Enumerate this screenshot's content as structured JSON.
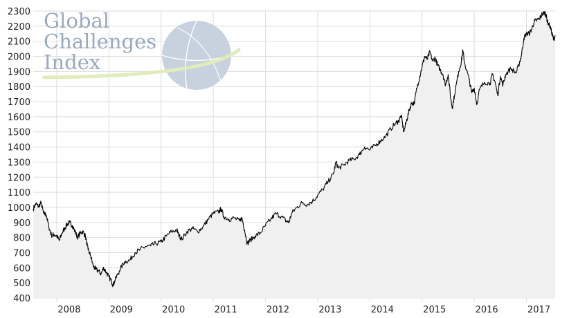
{
  "chart_data": {
    "type": "area",
    "title": "",
    "xlabel": "",
    "ylabel": "",
    "ylim": [
      400,
      2300
    ],
    "yticks": [
      400,
      500,
      600,
      700,
      800,
      900,
      1000,
      1100,
      1200,
      1300,
      1400,
      1500,
      1600,
      1700,
      1800,
      1900,
      2000,
      2100,
      2200,
      2300
    ],
    "xlim": [
      2007.55,
      2017.55
    ],
    "xticks": [
      {
        "value": 2008.0,
        "label": "2008"
      },
      {
        "value": 2009.0,
        "label": "2009"
      },
      {
        "value": 2010.0,
        "label": "2010"
      },
      {
        "value": 2011.0,
        "label": "2011"
      },
      {
        "value": 2012.0,
        "label": "2012"
      },
      {
        "value": 2013.0,
        "label": "2013"
      },
      {
        "value": 2014.0,
        "label": "2014"
      },
      {
        "value": 2015.0,
        "label": "2015"
      },
      {
        "value": 2016.0,
        "label": "2016"
      },
      {
        "value": 2017.0,
        "label": "2017"
      }
    ],
    "grid": true,
    "line_color": "#000000",
    "fill_color": "#f0f0f0",
    "grid_color": "#dddddd",
    "series": [
      {
        "name": "",
        "points": [
          [
            2007.55,
            990
          ],
          [
            2007.6,
            1025
          ],
          [
            2007.65,
            1005
          ],
          [
            2007.7,
            1030
          ],
          [
            2007.75,
            960
          ],
          [
            2007.8,
            950
          ],
          [
            2007.85,
            870
          ],
          [
            2007.9,
            815
          ],
          [
            2007.95,
            820
          ],
          [
            2008.0,
            810
          ],
          [
            2008.05,
            780
          ],
          [
            2008.1,
            830
          ],
          [
            2008.15,
            860
          ],
          [
            2008.2,
            890
          ],
          [
            2008.25,
            900
          ],
          [
            2008.3,
            880
          ],
          [
            2008.35,
            840
          ],
          [
            2008.4,
            800
          ],
          [
            2008.45,
            830
          ],
          [
            2008.5,
            840
          ],
          [
            2008.55,
            810
          ],
          [
            2008.6,
            720
          ],
          [
            2008.65,
            680
          ],
          [
            2008.7,
            610
          ],
          [
            2008.75,
            590
          ],
          [
            2008.8,
            580
          ],
          [
            2008.85,
            560
          ],
          [
            2008.9,
            600
          ],
          [
            2008.95,
            570
          ],
          [
            2009.0,
            540
          ],
          [
            2009.05,
            510
          ],
          [
            2009.08,
            485
          ],
          [
            2009.12,
            520
          ],
          [
            2009.2,
            580
          ],
          [
            2009.3,
            640
          ],
          [
            2009.4,
            650
          ],
          [
            2009.5,
            700
          ],
          [
            2009.6,
            720
          ],
          [
            2009.7,
            740
          ],
          [
            2009.8,
            745
          ],
          [
            2009.9,
            760
          ],
          [
            2010.0,
            770
          ],
          [
            2010.1,
            810
          ],
          [
            2010.2,
            840
          ],
          [
            2010.3,
            850
          ],
          [
            2010.35,
            810
          ],
          [
            2010.4,
            790
          ],
          [
            2010.5,
            840
          ],
          [
            2010.6,
            860
          ],
          [
            2010.7,
            840
          ],
          [
            2010.8,
            870
          ],
          [
            2010.9,
            920
          ],
          [
            2011.0,
            960
          ],
          [
            2011.1,
            970
          ],
          [
            2011.15,
            990
          ],
          [
            2011.2,
            940
          ],
          [
            2011.3,
            920
          ],
          [
            2011.4,
            930
          ],
          [
            2011.5,
            910
          ],
          [
            2011.55,
            930
          ],
          [
            2011.6,
            850
          ],
          [
            2011.65,
            760
          ],
          [
            2011.7,
            780
          ],
          [
            2011.8,
            810
          ],
          [
            2011.9,
            830
          ],
          [
            2012.0,
            880
          ],
          [
            2012.1,
            920
          ],
          [
            2012.2,
            960
          ],
          [
            2012.3,
            940
          ],
          [
            2012.4,
            910
          ],
          [
            2012.45,
            900
          ],
          [
            2012.5,
            960
          ],
          [
            2012.6,
            1000
          ],
          [
            2012.7,
            1030
          ],
          [
            2012.8,
            1020
          ],
          [
            2012.9,
            1040
          ],
          [
            2013.0,
            1080
          ],
          [
            2013.1,
            1120
          ],
          [
            2013.2,
            1170
          ],
          [
            2013.3,
            1220
          ],
          [
            2013.35,
            1300
          ],
          [
            2013.4,
            1260
          ],
          [
            2013.5,
            1280
          ],
          [
            2013.6,
            1310
          ],
          [
            2013.7,
            1320
          ],
          [
            2013.8,
            1350
          ],
          [
            2013.9,
            1400
          ],
          [
            2014.0,
            1380
          ],
          [
            2014.1,
            1410
          ],
          [
            2014.2,
            1440
          ],
          [
            2014.3,
            1470
          ],
          [
            2014.4,
            1520
          ],
          [
            2014.5,
            1560
          ],
          [
            2014.55,
            1570
          ],
          [
            2014.6,
            1610
          ],
          [
            2014.65,
            1500
          ],
          [
            2014.7,
            1570
          ],
          [
            2014.75,
            1640
          ],
          [
            2014.8,
            1690
          ],
          [
            2014.85,
            1690
          ],
          [
            2014.9,
            1790
          ],
          [
            2014.95,
            1860
          ],
          [
            2015.0,
            1930
          ],
          [
            2015.05,
            2000
          ],
          [
            2015.1,
            1980
          ],
          [
            2015.15,
            2030
          ],
          [
            2015.2,
            1970
          ],
          [
            2015.25,
            1990
          ],
          [
            2015.3,
            1940
          ],
          [
            2015.35,
            1910
          ],
          [
            2015.4,
            1880
          ],
          [
            2015.45,
            1810
          ],
          [
            2015.5,
            1880
          ],
          [
            2015.55,
            1720
          ],
          [
            2015.58,
            1660
          ],
          [
            2015.62,
            1740
          ],
          [
            2015.7,
            1900
          ],
          [
            2015.75,
            1960
          ],
          [
            2015.78,
            2040
          ],
          [
            2015.82,
            1950
          ],
          [
            2015.9,
            1850
          ],
          [
            2015.95,
            1760
          ],
          [
            2016.0,
            1790
          ],
          [
            2016.05,
            1680
          ],
          [
            2016.1,
            1780
          ],
          [
            2016.2,
            1830
          ],
          [
            2016.3,
            1820
          ],
          [
            2016.35,
            1880
          ],
          [
            2016.4,
            1830
          ],
          [
            2016.45,
            1740
          ],
          [
            2016.5,
            1870
          ],
          [
            2016.55,
            1810
          ],
          [
            2016.6,
            1880
          ],
          [
            2016.7,
            1920
          ],
          [
            2016.8,
            1890
          ],
          [
            2016.85,
            1940
          ],
          [
            2016.9,
            2000
          ],
          [
            2016.95,
            2120
          ],
          [
            2017.0,
            2150
          ],
          [
            2017.05,
            2150
          ],
          [
            2017.1,
            2180
          ],
          [
            2017.15,
            2230
          ],
          [
            2017.2,
            2240
          ],
          [
            2017.25,
            2250
          ],
          [
            2017.3,
            2280
          ],
          [
            2017.35,
            2290
          ],
          [
            2017.38,
            2270
          ],
          [
            2017.4,
            2230
          ],
          [
            2017.45,
            2200
          ],
          [
            2017.5,
            2140
          ],
          [
            2017.52,
            2110
          ],
          [
            2017.55,
            2140
          ]
        ]
      }
    ]
  },
  "logo": {
    "lines": [
      "Global",
      "Challenges",
      "Index"
    ]
  }
}
